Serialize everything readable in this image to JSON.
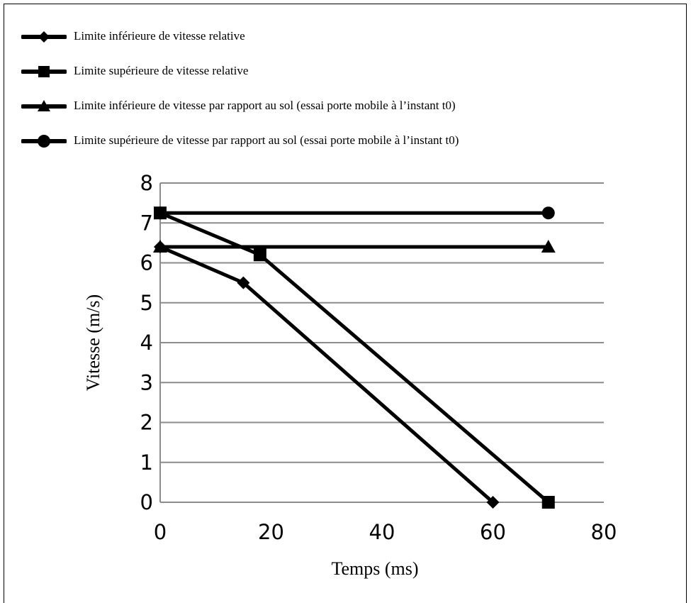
{
  "chart_data": {
    "type": "line",
    "title": "",
    "xlabel": "Temps (ms)",
    "ylabel": "Vitesse (m/s)",
    "xlim": [
      0,
      80
    ],
    "ylim": [
      0,
      8
    ],
    "xticks": [
      "0",
      "20",
      "40",
      "60",
      "80"
    ],
    "yticks": [
      "0",
      "1",
      "2",
      "3",
      "4",
      "5",
      "6",
      "7",
      "8"
    ],
    "grid": "horizontal",
    "legend_position": "top-left",
    "series": [
      {
        "name": "Limite inférieure de vitesse relative",
        "marker": "diamond",
        "x": [
          0,
          15,
          60
        ],
        "y": [
          6.4,
          5.5,
          0
        ]
      },
      {
        "name": "Limite supérieure de vitesse relative",
        "marker": "square",
        "x": [
          0,
          18,
          70
        ],
        "y": [
          7.25,
          6.2,
          0
        ]
      },
      {
        "name": "Limite inférieure de vitesse par rapport au sol (essai porte mobile à l’instant t0)",
        "marker": "triangle",
        "x": [
          0,
          70
        ],
        "y": [
          6.4,
          6.4
        ]
      },
      {
        "name": "Limite supérieure de vitesse par rapport au sol (essai porte mobile à l’instant t0)",
        "marker": "circle",
        "x": [
          0,
          70
        ],
        "y": [
          7.25,
          7.25
        ]
      }
    ]
  }
}
